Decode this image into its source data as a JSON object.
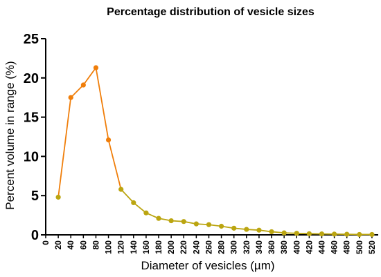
{
  "chart_data": {
    "type": "line",
    "title": "Percentage distribution of vesicle sizes",
    "xlabel": "Diameter of vesicles (µm)",
    "ylabel": "Percent volume in range (%)",
    "xlim": [
      0,
      530
    ],
    "ylim": [
      0,
      25
    ],
    "x_ticks": [
      "0",
      "20",
      "40",
      "60",
      "80",
      "100",
      "120",
      "140",
      "160",
      "180",
      "200",
      "220",
      "240",
      "260",
      "280",
      "300",
      "320",
      "340",
      "360",
      "380",
      "400",
      "420",
      "440",
      "460",
      "480",
      "500",
      "520"
    ],
    "y_ticks": [
      "0",
      "5",
      "10",
      "15",
      "20",
      "25"
    ],
    "grid": false,
    "legend": "none",
    "series": [
      {
        "x": [
          20,
          40,
          60,
          80,
          100,
          120,
          140,
          160,
          180,
          200,
          220,
          240,
          260,
          280,
          300,
          320,
          340,
          360,
          380,
          400,
          420,
          440,
          460,
          480,
          500,
          520
        ],
        "values": [
          4.8,
          17.5,
          19.1,
          21.3,
          12.1,
          5.8,
          4.1,
          2.8,
          2.1,
          1.8,
          1.7,
          1.4,
          1.3,
          1.1,
          0.85,
          0.7,
          0.6,
          0.4,
          0.25,
          0.2,
          0.15,
          0.12,
          0.1,
          0.08,
          0.05,
          0.05
        ]
      }
    ],
    "colors": {
      "line_peak": "#F07E0A",
      "line_tail": "#BBA510",
      "marker_peak": "#F07E0A",
      "marker_tail": "#BBA510"
    }
  }
}
